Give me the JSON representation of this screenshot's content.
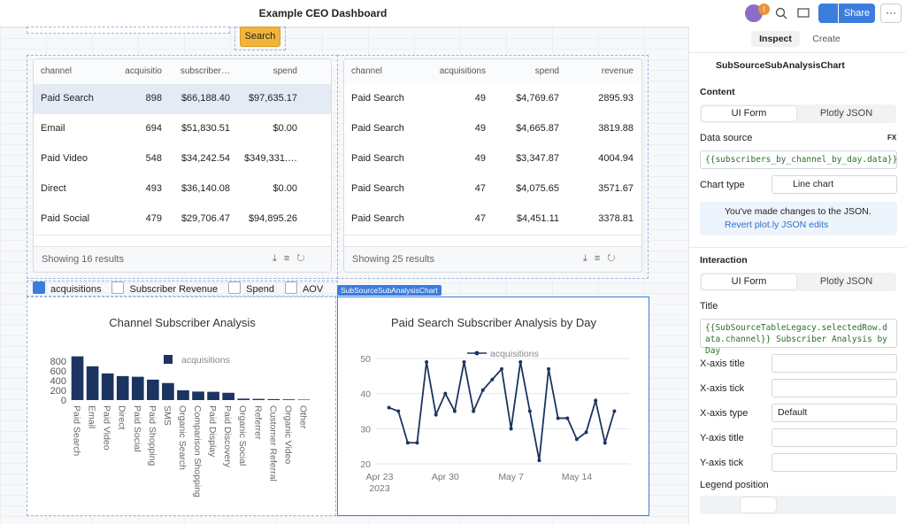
{
  "header": {
    "title": "Example CEO Dashboard",
    "avatar_badge": "I",
    "share": "Share"
  },
  "toolbar": {
    "search_button": "Search"
  },
  "tables": [
    {
      "columns": [
        "channel",
        "acquisitio",
        "subscriber…",
        "spend"
      ],
      "rows": [
        [
          "Paid Search",
          "898",
          "$66,188.40",
          "$97,635.17"
        ],
        [
          "Email",
          "694",
          "$51,830.51",
          "$0.00"
        ],
        [
          "Paid Video",
          "548",
          "$34,242.54",
          "$349,331.…"
        ],
        [
          "Direct",
          "493",
          "$36,140.08",
          "$0.00"
        ],
        [
          "Paid Social",
          "479",
          "$29,706.47",
          "$94,895.26"
        ]
      ],
      "footer": "Showing 16 results"
    },
    {
      "columns": [
        "channel",
        "acquisitions",
        "spend",
        "revenue"
      ],
      "rows": [
        [
          "Paid Search",
          "49",
          "$4,769.67",
          "2895.93"
        ],
        [
          "Paid Search",
          "49",
          "$4,665.87",
          "3819.88"
        ],
        [
          "Paid Search",
          "49",
          "$3,347.87",
          "4004.94"
        ],
        [
          "Paid Search",
          "47",
          "$4,075.65",
          "3571.67"
        ],
        [
          "Paid Search",
          "47",
          "$4,451.11",
          "3378.81"
        ]
      ],
      "footer": "Showing 25 results"
    }
  ],
  "checkboxes": [
    {
      "label": "acquisitions",
      "checked": true
    },
    {
      "label": "Subscriber Revenue",
      "checked": false
    },
    {
      "label": "Spend",
      "checked": false
    },
    {
      "label": "AOV",
      "checked": false
    }
  ],
  "selected_label": "SubSourceSubAnalysisChart",
  "chart_data": [
    {
      "type": "bar",
      "title": "Channel Subscriber Analysis",
      "categories": [
        "Paid Search",
        "Email",
        "Paid Video",
        "Direct",
        "Paid Social",
        "Paid Shopping",
        "SMS",
        "Organic Search",
        "Comparison Shopping",
        "Paid Display",
        "Paid Discovery",
        "Organic Social",
        "Referrer",
        "Customer Referral",
        "Organic Video",
        "Other"
      ],
      "series": [
        {
          "name": "acquisitions",
          "color": "#1c3461",
          "values": [
            898,
            694,
            548,
            493,
            479,
            420,
            350,
            200,
            175,
            170,
            150,
            30,
            25,
            20,
            15,
            10
          ]
        }
      ],
      "ylim": [
        0,
        900
      ],
      "yticks": [
        0,
        200,
        400,
        600,
        800
      ]
    },
    {
      "type": "line",
      "title": "Paid Search Subscriber Analysis by Day",
      "x": [
        "2023-04-24",
        "2023-04-25",
        "2023-04-26",
        "2023-04-27",
        "2023-04-28",
        "2023-04-29",
        "2023-04-30",
        "2023-05-01",
        "2023-05-02",
        "2023-05-03",
        "2023-05-04",
        "2023-05-05",
        "2023-05-06",
        "2023-05-07",
        "2023-05-08",
        "2023-05-09",
        "2023-05-10",
        "2023-05-11",
        "2023-05-12",
        "2023-05-13",
        "2023-05-14",
        "2023-05-15",
        "2023-05-16",
        "2023-05-17",
        "2023-05-18"
      ],
      "series": [
        {
          "name": "acquisitions",
          "color": "#1c3461",
          "values": [
            36,
            35,
            26,
            26,
            49,
            34,
            40,
            35,
            49,
            35,
            41,
            44,
            47,
            30,
            49,
            35,
            21,
            47,
            33,
            33,
            27,
            29,
            38,
            26,
            35
          ]
        }
      ],
      "xlim": [
        "2023-04-23",
        "2023-05-19"
      ],
      "xticks": [
        {
          "value": "2023-04-23",
          "label": "Apr 23\n2023"
        },
        {
          "value": "2023-04-30",
          "label": "Apr 30"
        },
        {
          "value": "2023-05-07",
          "label": "May 7"
        },
        {
          "value": "2023-05-14",
          "label": "May 14"
        }
      ],
      "ylim": [
        19,
        51
      ],
      "yticks": [
        20,
        30,
        40,
        50
      ],
      "grid": true
    }
  ],
  "inspector": {
    "tabs": [
      "Inspect",
      "Create"
    ],
    "component": "SubSourceSubAnalysisChart",
    "content_heading": "Content",
    "modes": [
      "UI Form",
      "Plotly JSON"
    ],
    "data_source_label": "Data source",
    "fx": "FX",
    "data_source": "{{subscribers_by_channel_by_day.data}}",
    "chart_type_label": "Chart type",
    "chart_type": "Line chart",
    "notice": "You've made changes to the JSON.",
    "notice_link": "Revert plot.ly JSON edits",
    "interaction_heading": "Interaction",
    "interaction_modes": [
      "UI Form",
      "Plotly JSON"
    ],
    "title_label": "Title",
    "title_value": "{{SubSourceTableLegacy.selectedRow.data.channel}} Subscriber Analysis by Day",
    "x_title_label": "X-axis title",
    "x_tick_label": "X-axis tick",
    "x_type_label": "X-axis type",
    "x_type": "Default",
    "y_title_label": "Y-axis title",
    "y_tick_label": "Y-axis tick",
    "legend_label": "Legend position"
  }
}
